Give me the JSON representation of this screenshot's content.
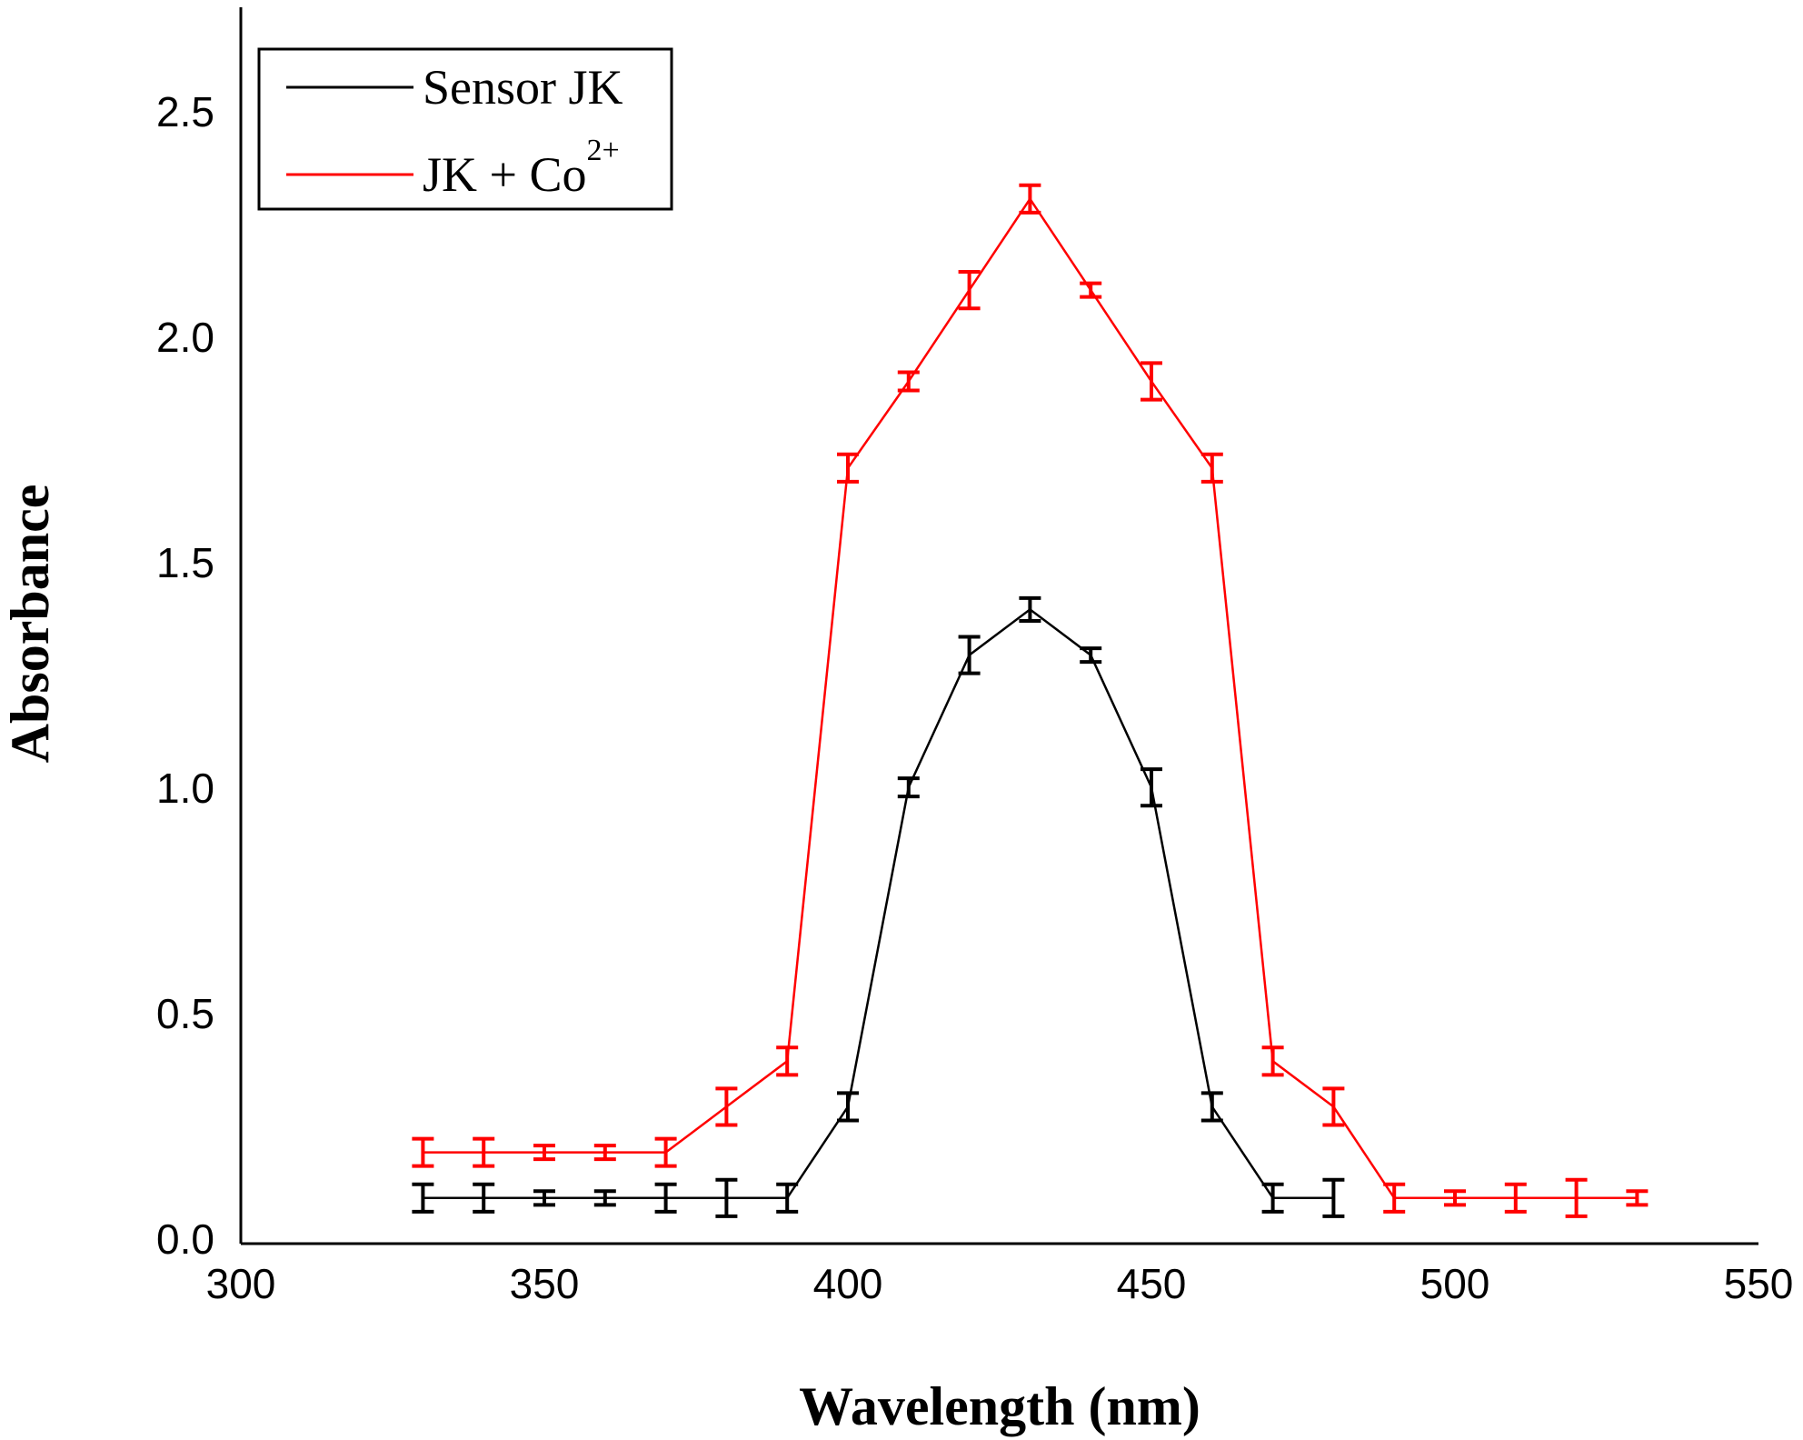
{
  "chart_data": {
    "type": "line",
    "xlabel": "Wavelength (nm)",
    "ylabel": "Absorbance",
    "xlim": [
      300,
      550
    ],
    "ylim": [
      0,
      2.7
    ],
    "x_ticks": [
      "300",
      "350",
      "400",
      "450",
      "500",
      "550"
    ],
    "y_ticks": [
      "0.0",
      "0.5",
      "1.0",
      "1.5",
      "2.0",
      "2.5"
    ],
    "grid": false,
    "legend_position": "top-left",
    "error_bars": true,
    "series": [
      {
        "name": "Sensor JK",
        "color": "#000000",
        "x": [
          330,
          340,
          350,
          360,
          370,
          380,
          390,
          400,
          410,
          420,
          430,
          440,
          450,
          460,
          470,
          480
        ],
        "y": [
          0.1,
          0.1,
          0.1,
          0.1,
          0.1,
          0.1,
          0.1,
          0.3,
          1.0,
          1.29,
          1.39,
          1.29,
          1.0,
          0.3,
          0.1,
          0.1
        ],
        "err": [
          0.03,
          0.03,
          0.015,
          0.015,
          0.03,
          0.04,
          0.03,
          0.03,
          0.02,
          0.04,
          0.025,
          0.015,
          0.04,
          0.03,
          0.03,
          0.04
        ]
      },
      {
        "name": "JK + Co",
        "name_sup": "2+",
        "color": "#ff0000",
        "x": [
          330,
          340,
          350,
          360,
          370,
          380,
          390,
          400,
          410,
          420,
          430,
          440,
          450,
          460,
          470,
          480,
          490,
          500,
          510,
          520,
          530
        ],
        "y": [
          0.2,
          0.2,
          0.2,
          0.2,
          0.2,
          0.3,
          0.4,
          1.7,
          1.89,
          2.09,
          2.29,
          2.09,
          1.89,
          1.7,
          0.4,
          0.3,
          0.1,
          0.1,
          0.1,
          0.1,
          0.1
        ],
        "err": [
          0.03,
          0.03,
          0.015,
          0.015,
          0.03,
          0.04,
          0.03,
          0.03,
          0.02,
          0.04,
          0.03,
          0.015,
          0.04,
          0.03,
          0.03,
          0.04,
          0.03,
          0.015,
          0.03,
          0.04,
          0.015
        ]
      }
    ]
  }
}
